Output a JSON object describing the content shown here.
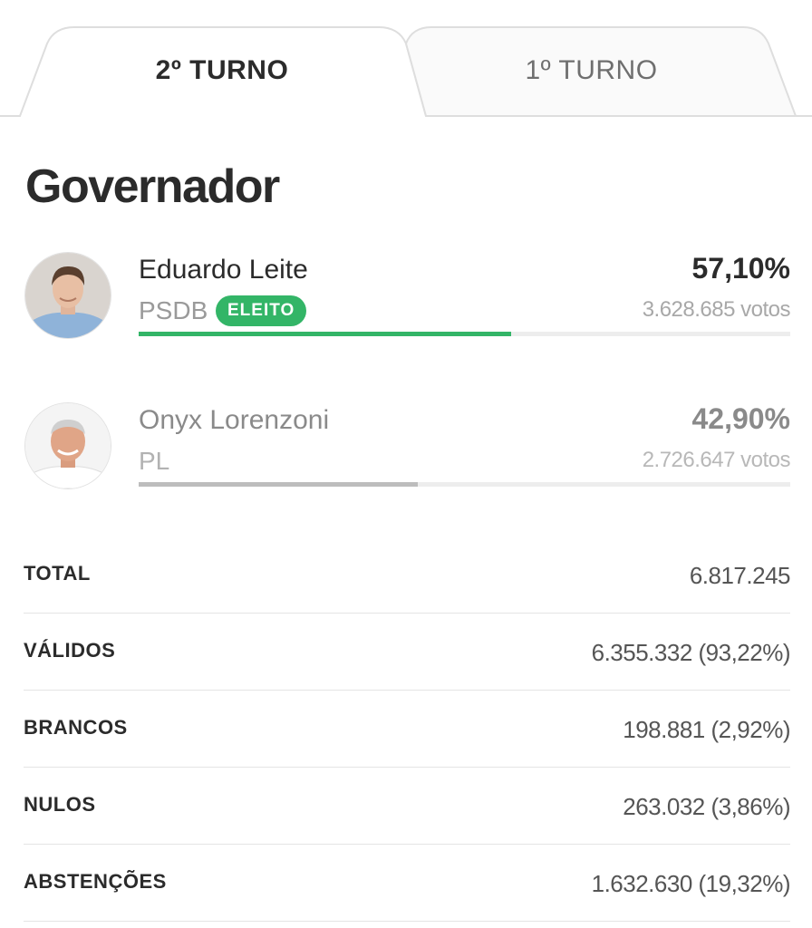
{
  "tabs": [
    {
      "label": "2º TURNO",
      "active": true
    },
    {
      "label": "1º TURNO",
      "active": false
    }
  ],
  "title": "Governador",
  "candidates": [
    {
      "name": "Eduardo Leite",
      "party": "PSDB",
      "badge": "ELEITO",
      "percent": "57,10%",
      "votes": "3.628.685 votos",
      "share": 0.571,
      "bar_color": "#33b567"
    },
    {
      "name": "Onyx Lorenzoni",
      "party": "PL",
      "percent": "42,90%",
      "votes": "2.726.647 votos",
      "share": 0.429,
      "bar_color": "#bdbdbd"
    }
  ],
  "summary": [
    {
      "label": "TOTAL",
      "value": "6.817.245"
    },
    {
      "label": "VÁLIDOS",
      "value": "6.355.332 (93,22%)"
    },
    {
      "label": "BRANCOS",
      "value": "198.881 (2,92%)"
    },
    {
      "label": "NULOS",
      "value": "263.032 (3,86%)"
    },
    {
      "label": "ABSTENÇÕES",
      "value": "1.632.630 (19,32%)"
    }
  ],
  "colors": {
    "elected_badge": "#33b567",
    "text_primary": "#2b2b2b"
  }
}
